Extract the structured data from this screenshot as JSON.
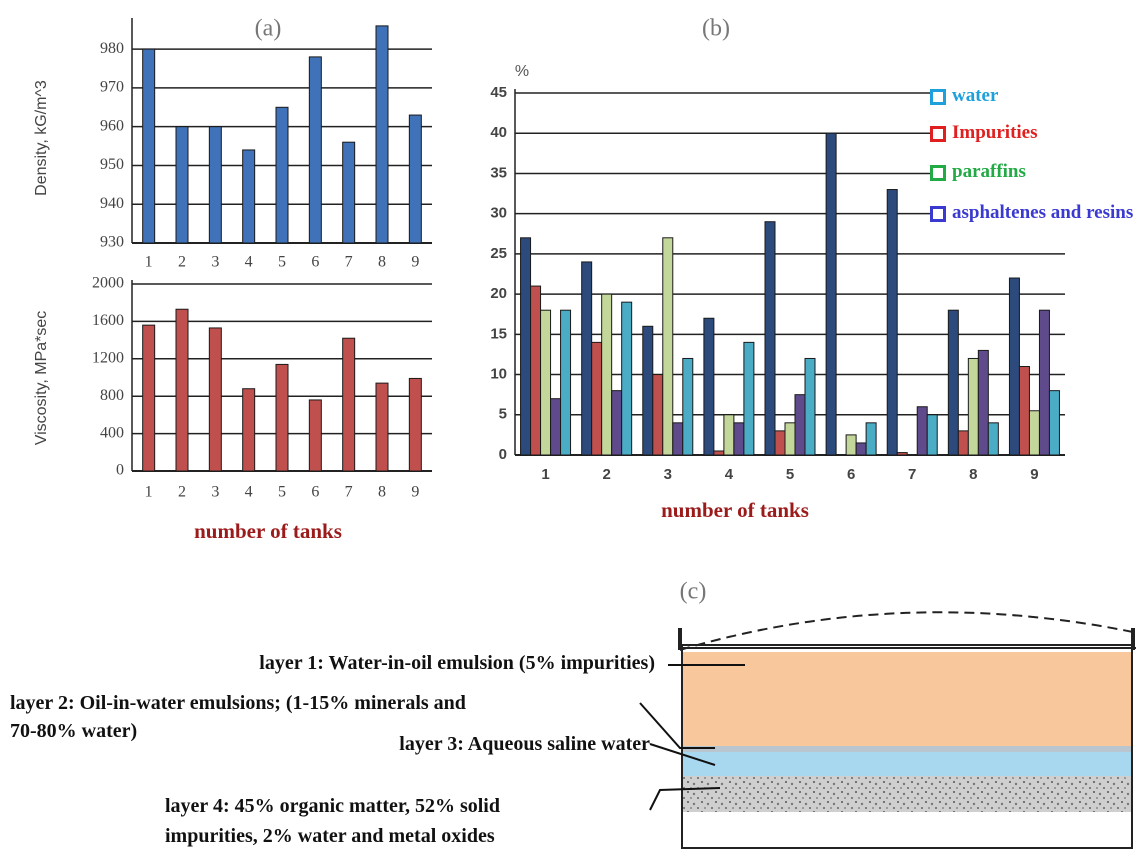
{
  "chart_data": [
    {
      "type": "bar",
      "title": "(a)",
      "ylabel": "Density, kG/m^3",
      "categories": [
        "1",
        "2",
        "3",
        "4",
        "5",
        "6",
        "7",
        "8",
        "9"
      ],
      "values": [
        980,
        960,
        960,
        954,
        965,
        978,
        956,
        986,
        963
      ],
      "color": "#3f72b8",
      "ylim": [
        930,
        987
      ],
      "yticks": [
        930,
        940,
        950,
        960,
        970,
        980
      ],
      "grid": true
    },
    {
      "type": "bar",
      "ylabel": "Viscosity, MPa*sec",
      "xlabel": "number of tanks",
      "categories": [
        "1",
        "2",
        "3",
        "4",
        "5",
        "6",
        "7",
        "8",
        "9"
      ],
      "values": [
        1560,
        1730,
        1530,
        880,
        1140,
        760,
        1420,
        940,
        990
      ],
      "color": "#c0504d",
      "ylim": [
        0,
        2000
      ],
      "yticks": [
        0,
        400,
        800,
        1200,
        1600,
        2000
      ],
      "grid": true
    },
    {
      "type": "bar",
      "title": "(b)",
      "ylabel": "%",
      "xlabel": "number of tanks",
      "categories": [
        "1",
        "2",
        "3",
        "4",
        "5",
        "6",
        "7",
        "8",
        "9"
      ],
      "series": [
        {
          "color": "#2c4a7c",
          "values": [
            27,
            24,
            16,
            17,
            29,
            40,
            33,
            18,
            22
          ]
        },
        {
          "name": "Impurities",
          "color": "#c0504d",
          "legend_color": "#e02020",
          "values": [
            21,
            14,
            10,
            0.5,
            3,
            0,
            0.3,
            3,
            11
          ]
        },
        {
          "name": "paraffins",
          "color": "#c4d79b",
          "legend_color": "#22aa44",
          "values": [
            18,
            20,
            27,
            5,
            4,
            2.5,
            0,
            12,
            5.5
          ]
        },
        {
          "name": "asphaltenes and resins",
          "color": "#5f4a8b",
          "legend_color": "#3a3ad0",
          "values": [
            7,
            8,
            4,
            4,
            7.5,
            1.5,
            6,
            13,
            18
          ]
        },
        {
          "name": "water",
          "color": "#4bacc6",
          "legend_color": "#1ea0dc",
          "values": [
            18,
            19,
            12,
            14,
            12,
            4,
            5,
            4,
            8
          ]
        }
      ],
      "ylim": [
        0,
        45
      ],
      "yticks": [
        0,
        5,
        10,
        15,
        20,
        25,
        30,
        35,
        40,
        45
      ],
      "grid": true,
      "legend": "upper right"
    }
  ],
  "diagram": {
    "title": "(c)",
    "labels": [
      {
        "lines": [
          "layer 1: Water-in-oil emulsion (5% impurities)"
        ]
      },
      {
        "lines": [
          "layer 2: Oil-in-water emulsions; (1-15% minerals and",
          "70-80% water)"
        ]
      },
      {
        "lines": [
          "layer 3: Aqueous saline water"
        ]
      },
      {
        "lines": [
          "layer 4: 45% organic matter, 52% solid",
          "impurities, 2% water and metal oxides"
        ]
      }
    ]
  }
}
